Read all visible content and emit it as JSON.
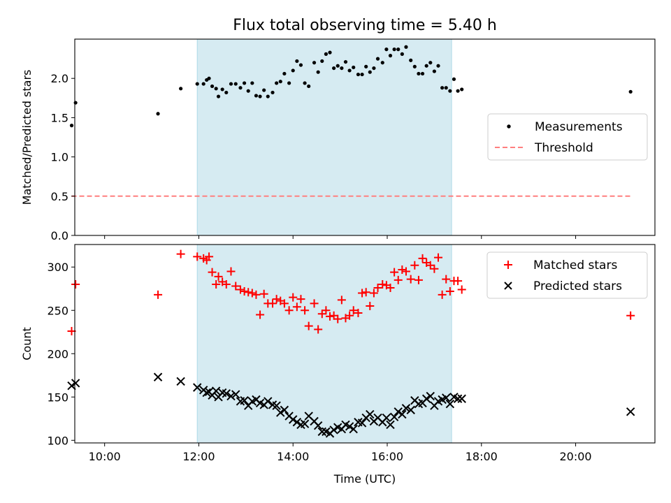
{
  "chart_data": [
    {
      "type": "scatter",
      "title": "Flux total observing time = 5.40 h",
      "xlabel": "",
      "ylabel": "Matched/Predicted stars",
      "xlim": [
        "09:22",
        "21:41"
      ],
      "ylim": [
        0,
        2.5
      ],
      "yticks": [
        "0.0",
        "0.5",
        "1.0",
        "1.5",
        "2.0"
      ],
      "grid": false,
      "legend_position": "center-right",
      "shaded_span": [
        "11:58",
        "17:22"
      ],
      "series": [
        {
          "name": "Measurements",
          "marker": "dot",
          "color": "#000000",
          "points": [
            [
              "09:18",
              1.4
            ],
            [
              "09:23",
              1.69
            ],
            [
              "11:08",
              1.55
            ],
            [
              "11:37",
              1.87
            ],
            [
              "11:58",
              1.93
            ],
            [
              "12:06",
              1.93
            ],
            [
              "12:10",
              1.98
            ],
            [
              "12:13",
              2.0
            ],
            [
              "12:17",
              1.9
            ],
            [
              "12:22",
              1.87
            ],
            [
              "12:25",
              1.77
            ],
            [
              "12:30",
              1.86
            ],
            [
              "12:35",
              1.82
            ],
            [
              "12:41",
              1.93
            ],
            [
              "12:47",
              1.93
            ],
            [
              "12:53",
              1.88
            ],
            [
              "12:58",
              1.94
            ],
            [
              "13:03",
              1.84
            ],
            [
              "13:08",
              1.94
            ],
            [
              "13:13",
              1.78
            ],
            [
              "13:18",
              1.77
            ],
            [
              "13:23",
              1.85
            ],
            [
              "13:28",
              1.77
            ],
            [
              "13:34",
              1.82
            ],
            [
              "13:39",
              1.94
            ],
            [
              "13:44",
              1.96
            ],
            [
              "13:49",
              2.06
            ],
            [
              "13:55",
              1.94
            ],
            [
              "14:00",
              2.1
            ],
            [
              "14:05",
              2.22
            ],
            [
              "14:10",
              2.17
            ],
            [
              "14:15",
              1.94
            ],
            [
              "14:20",
              1.9
            ],
            [
              "14:27",
              2.2
            ],
            [
              "14:32",
              2.08
            ],
            [
              "14:37",
              2.22
            ],
            [
              "14:42",
              2.31
            ],
            [
              "14:47",
              2.33
            ],
            [
              "14:52",
              2.13
            ],
            [
              "14:57",
              2.16
            ],
            [
              "15:02",
              2.13
            ],
            [
              "15:07",
              2.21
            ],
            [
              "15:12",
              2.1
            ],
            [
              "15:17",
              2.14
            ],
            [
              "15:23",
              2.05
            ],
            [
              "15:28",
              2.05
            ],
            [
              "15:33",
              2.15
            ],
            [
              "15:38",
              2.08
            ],
            [
              "15:43",
              2.13
            ],
            [
              "15:48",
              2.25
            ],
            [
              "15:54",
              2.2
            ],
            [
              "15:59",
              2.37
            ],
            [
              "16:04",
              2.29
            ],
            [
              "16:09",
              2.37
            ],
            [
              "16:14",
              2.37
            ],
            [
              "16:19",
              2.31
            ],
            [
              "16:24",
              2.4
            ],
            [
              "16:30",
              2.23
            ],
            [
              "16:35",
              2.15
            ],
            [
              "16:40",
              2.06
            ],
            [
              "16:45",
              2.06
            ],
            [
              "16:50",
              2.16
            ],
            [
              "16:55",
              2.2
            ],
            [
              "17:00",
              2.09
            ],
            [
              "17:05",
              2.16
            ],
            [
              "17:10",
              1.88
            ],
            [
              "17:15",
              1.88
            ],
            [
              "17:20",
              1.84
            ],
            [
              "17:25",
              1.99
            ],
            [
              "17:30",
              1.84
            ],
            [
              "17:35",
              1.86
            ],
            [
              "21:10",
              1.83
            ]
          ]
        },
        {
          "name": "Threshold",
          "marker": "dashed-line",
          "color": "#ff7f7f",
          "points": [
            [
              "09:18",
              0.5
            ],
            [
              "21:10",
              0.5
            ]
          ]
        }
      ]
    },
    {
      "type": "scatter",
      "title": "",
      "xlabel": "Time (UTC)",
      "ylabel": "Count",
      "xlim": [
        "09:22",
        "21:41"
      ],
      "ylim": [
        97,
        326
      ],
      "xticks": [
        "10:00",
        "12:00",
        "14:00",
        "16:00",
        "18:00",
        "20:00"
      ],
      "yticks": [
        "100",
        "150",
        "200",
        "250",
        "300"
      ],
      "grid": false,
      "legend_position": "top-right",
      "shaded_span": [
        "11:58",
        "17:22"
      ],
      "series": [
        {
          "name": "Matched stars",
          "marker": "plus",
          "color": "#ff0000",
          "points": [
            [
              "09:18",
              226
            ],
            [
              "09:23",
              280
            ],
            [
              "11:08",
              268
            ],
            [
              "11:37",
              315
            ],
            [
              "11:58",
              312
            ],
            [
              "12:06",
              310
            ],
            [
              "12:10",
              308
            ],
            [
              "12:13",
              312
            ],
            [
              "12:17",
              294
            ],
            [
              "12:22",
              280
            ],
            [
              "12:25",
              289
            ],
            [
              "12:30",
              283
            ],
            [
              "12:35",
              280
            ],
            [
              "12:41",
              295
            ],
            [
              "12:47",
              278
            ],
            [
              "12:53",
              274
            ],
            [
              "12:58",
              272
            ],
            [
              "13:03",
              271
            ],
            [
              "13:08",
              270
            ],
            [
              "13:13",
              268
            ],
            [
              "13:18",
              245
            ],
            [
              "13:23",
              269
            ],
            [
              "13:28",
              258
            ],
            [
              "13:34",
              258
            ],
            [
              "13:39",
              263
            ],
            [
              "13:44",
              261
            ],
            [
              "13:49",
              258
            ],
            [
              "13:55",
              250
            ],
            [
              "14:00",
              265
            ],
            [
              "14:05",
              254
            ],
            [
              "14:10",
              263
            ],
            [
              "14:15",
              250
            ],
            [
              "14:20",
              232
            ],
            [
              "14:27",
              258
            ],
            [
              "14:32",
              228
            ],
            [
              "14:37",
              246
            ],
            [
              "14:42",
              250
            ],
            [
              "14:47",
              243
            ],
            [
              "14:52",
              244
            ],
            [
              "14:57",
              240
            ],
            [
              "15:02",
              262
            ],
            [
              "15:07",
              241
            ],
            [
              "15:12",
              244
            ],
            [
              "15:17",
              250
            ],
            [
              "15:23",
              247
            ],
            [
              "15:28",
              270
            ],
            [
              "15:33",
              271
            ],
            [
              "15:38",
              255
            ],
            [
              "15:43",
              270
            ],
            [
              "15:48",
              276
            ],
            [
              "15:54",
              280
            ],
            [
              "15:59",
              279
            ],
            [
              "16:04",
              276
            ],
            [
              "16:09",
              294
            ],
            [
              "16:14",
              285
            ],
            [
              "16:19",
              297
            ],
            [
              "16:24",
              295
            ],
            [
              "16:30",
              286
            ],
            [
              "16:35",
              302
            ],
            [
              "16:40",
              285
            ],
            [
              "16:45",
              310
            ],
            [
              "16:50",
              305
            ],
            [
              "16:55",
              302
            ],
            [
              "17:00",
              298
            ],
            [
              "17:05",
              311
            ],
            [
              "17:10",
              268
            ],
            [
              "17:15",
              286
            ],
            [
              "17:20",
              272
            ],
            [
              "17:25",
              284
            ],
            [
              "17:30",
              284
            ],
            [
              "17:35",
              274
            ],
            [
              "21:10",
              244
            ]
          ]
        },
        {
          "name": "Predicted stars",
          "marker": "x",
          "color": "#000000",
          "points": [
            [
              "09:18",
              163
            ],
            [
              "09:23",
              166
            ],
            [
              "11:08",
              173
            ],
            [
              "11:37",
              168
            ],
            [
              "11:58",
              161
            ],
            [
              "12:06",
              158
            ],
            [
              "12:10",
              155
            ],
            [
              "12:13",
              156
            ],
            [
              "12:17",
              152
            ],
            [
              "12:22",
              157
            ],
            [
              "12:25",
              150
            ],
            [
              "12:30",
              155
            ],
            [
              "12:35",
              154
            ],
            [
              "12:41",
              151
            ],
            [
              "12:47",
              153
            ],
            [
              "12:53",
              145
            ],
            [
              "12:58",
              146
            ],
            [
              "13:03",
              140
            ],
            [
              "13:08",
              145
            ],
            [
              "13:13",
              147
            ],
            [
              "13:18",
              143
            ],
            [
              "13:23",
              141
            ],
            [
              "13:28",
              145
            ],
            [
              "13:34",
              141
            ],
            [
              "13:39",
              140
            ],
            [
              "13:44",
              132
            ],
            [
              "13:49",
              135
            ],
            [
              "13:55",
              128
            ],
            [
              "14:00",
              124
            ],
            [
              "14:05",
              121
            ],
            [
              "14:10",
              118
            ],
            [
              "14:15",
              119
            ],
            [
              "14:20",
              128
            ],
            [
              "14:27",
              122
            ],
            [
              "14:32",
              117
            ],
            [
              "14:37",
              110
            ],
            [
              "14:42",
              110
            ],
            [
              "14:47",
              108
            ],
            [
              "14:52",
              112
            ],
            [
              "14:57",
              115
            ],
            [
              "15:02",
              113
            ],
            [
              "15:07",
              118
            ],
            [
              "15:12",
              116
            ],
            [
              "15:17",
              113
            ],
            [
              "15:23",
              121
            ],
            [
              "15:28",
              120
            ],
            [
              "15:33",
              126
            ],
            [
              "15:38",
              130
            ],
            [
              "15:43",
              122
            ],
            [
              "15:48",
              126
            ],
            [
              "15:54",
              121
            ],
            [
              "15:59",
              126
            ],
            [
              "16:04",
              118
            ],
            [
              "16:09",
              127
            ],
            [
              "16:14",
              133
            ],
            [
              "16:19",
              130
            ],
            [
              "16:24",
              137
            ],
            [
              "16:30",
              135
            ],
            [
              "16:35",
              146
            ],
            [
              "16:40",
              142
            ],
            [
              "16:45",
              143
            ],
            [
              "16:50",
              148
            ],
            [
              "16:55",
              151
            ],
            [
              "17:00",
              140
            ],
            [
              "17:05",
              145
            ],
            [
              "17:10",
              147
            ],
            [
              "17:15",
              149
            ],
            [
              "17:20",
              142
            ],
            [
              "17:25",
              150
            ],
            [
              "17:30",
              148
            ],
            [
              "17:35",
              148
            ],
            [
              "21:10",
              133
            ]
          ]
        }
      ]
    }
  ]
}
